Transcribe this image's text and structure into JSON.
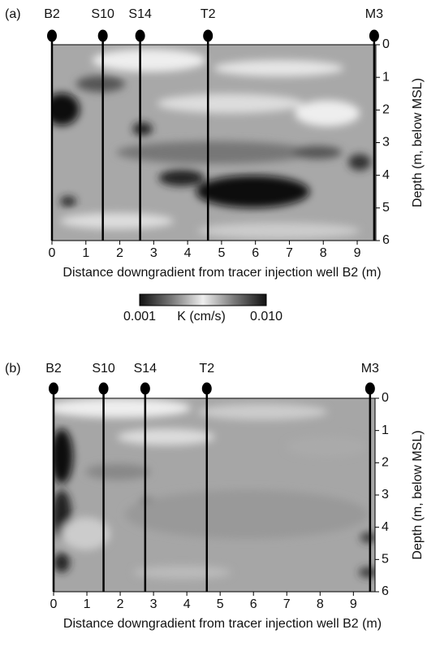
{
  "panels": [
    {
      "label": "(a)",
      "wells": [
        {
          "name": "B2",
          "x": 0
        },
        {
          "name": "S10",
          "x": 1.5
        },
        {
          "name": "S14",
          "x": 2.6
        },
        {
          "name": "T2",
          "x": 4.6
        },
        {
          "name": "M3",
          "x": 9.5
        }
      ],
      "xlabel": "Distance downgradient from tracer injection well B2 (m)",
      "ylabel": "Depth (m, below MSL)",
      "xlim": [
        0,
        9.55
      ],
      "xticks": [
        0,
        1,
        2,
        3,
        4,
        5,
        6,
        7,
        8,
        9
      ],
      "ylim": [
        0,
        6
      ],
      "yticks": [
        0,
        1,
        2,
        3,
        4,
        5,
        6
      ]
    },
    {
      "label": "(b)",
      "wells": [
        {
          "name": "B2",
          "x": 0
        },
        {
          "name": "S10",
          "x": 1.5
        },
        {
          "name": "S14",
          "x": 2.75
        },
        {
          "name": "T2",
          "x": 4.6
        },
        {
          "name": "M3",
          "x": 9.5
        }
      ],
      "xlabel": "Distance downgradient from tracer injection well B2 (m)",
      "ylabel": "Depth (m, below MSL)",
      "xlim": [
        0,
        9.65
      ],
      "xticks": [
        0,
        1,
        2,
        3,
        4,
        5,
        6,
        7,
        8,
        9
      ],
      "ylim": [
        0,
        6
      ],
      "yticks": [
        0,
        1,
        2,
        3,
        4,
        5,
        6
      ]
    }
  ],
  "colorbar": {
    "min_label": "0.001",
    "label": "K (cm/s)",
    "max_label": "0.010"
  }
}
